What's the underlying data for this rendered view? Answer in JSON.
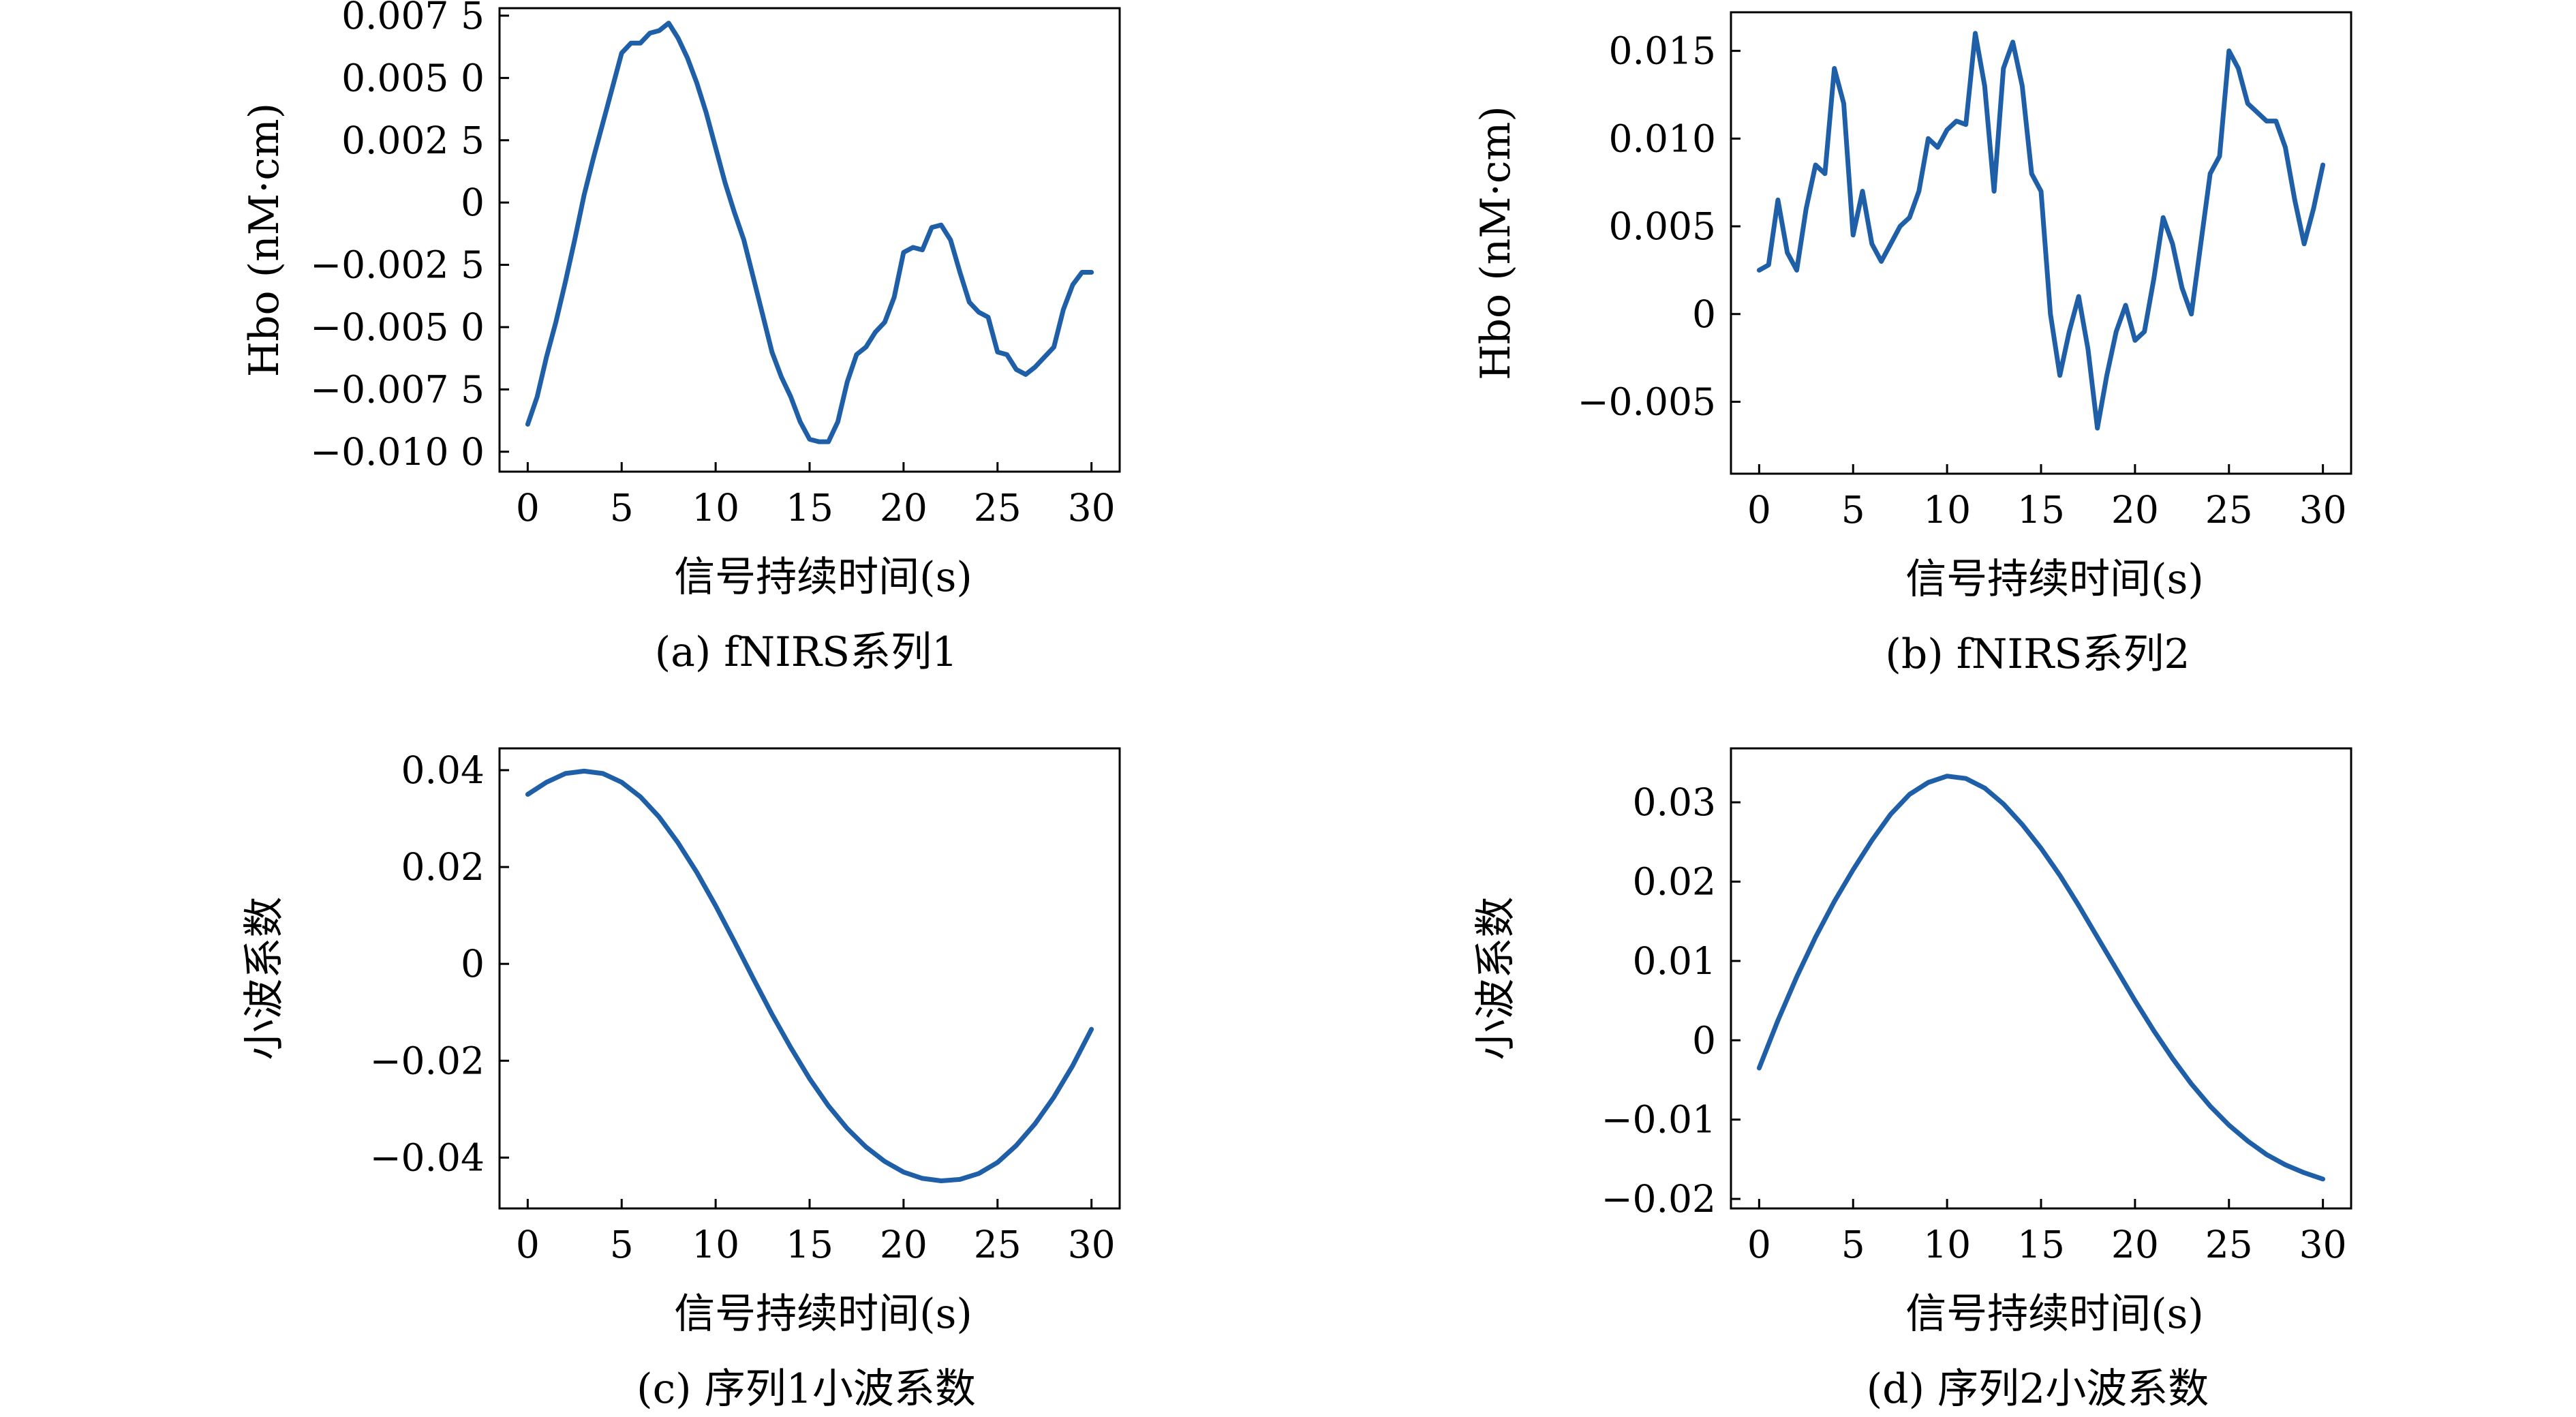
{
  "chart_data": [
    {
      "type": "line",
      "caption": "(a) fNIRS系列1",
      "xlabel": "信号持续时间(s)",
      "ylabel": "Hbo (nM·cm)",
      "xlim": [
        -1.5,
        31.5
      ],
      "ylim": [
        -0.0108,
        0.0078
      ],
      "xticks": [
        0,
        5,
        10,
        15,
        20,
        25,
        30
      ],
      "xtick_labels": [
        "0",
        "5",
        "10",
        "15",
        "20",
        "25",
        "30"
      ],
      "yticks": [
        -0.01,
        -0.0075,
        -0.005,
        -0.0025,
        0,
        0.0025,
        0.005,
        0.0075
      ],
      "ytick_labels": [
        "−0.010 0",
        "−0.007 5",
        "−0.005 0",
        "−0.002 5",
        "0",
        "0.002 5",
        "0.005 0",
        "0.007 5"
      ],
      "color": "#1f5fa8",
      "x": [
        0,
        0.5,
        1,
        1.5,
        2,
        2.5,
        3,
        3.5,
        4,
        4.5,
        5,
        5.5,
        6,
        6.5,
        7,
        7.5,
        8,
        8.5,
        9,
        9.5,
        10,
        10.5,
        11,
        11.5,
        12,
        12.5,
        13,
        13.5,
        14,
        14.5,
        15,
        15.5,
        16,
        16.5,
        17,
        17.5,
        18,
        18.5,
        19,
        19.5,
        20,
        20.5,
        21,
        21.5,
        22,
        22.5,
        23,
        23.5,
        24,
        24.5,
        25,
        25.5,
        26,
        26.5,
        27,
        27.5,
        28,
        28.5,
        29,
        29.5,
        30
      ],
      "y": [
        -0.0089,
        -0.0078,
        -0.0062,
        -0.0048,
        -0.0032,
        -0.0015,
        0.0003,
        0.0018,
        0.0032,
        0.0046,
        0.006,
        0.0064,
        0.0064,
        0.0068,
        0.0069,
        0.0072,
        0.0066,
        0.0058,
        0.0048,
        0.0036,
        0.0022,
        0.0008,
        -0.0004,
        -0.0015,
        -0.003,
        -0.0045,
        -0.006,
        -0.007,
        -0.0078,
        -0.0088,
        -0.0095,
        -0.0096,
        -0.0096,
        -0.0088,
        -0.0072,
        -0.0061,
        -0.0058,
        -0.0052,
        -0.0048,
        -0.0038,
        -0.002,
        -0.0018,
        -0.0019,
        -0.001,
        -0.0009,
        -0.0015,
        -0.0028,
        -0.004,
        -0.0044,
        -0.0046,
        -0.006,
        -0.0061,
        -0.0067,
        -0.0069,
        -0.0066,
        -0.0062,
        -0.0058,
        -0.0043,
        -0.0033,
        -0.0028,
        -0.0028
      ]
    },
    {
      "type": "line",
      "caption": "(b) fNIRS系列2",
      "xlabel": "信号持续时间(s)",
      "ylabel": "Hbo (nM·cm)",
      "xlim": [
        -1.5,
        31.5
      ],
      "ylim": [
        -0.0091,
        0.0172
      ],
      "xticks": [
        0,
        5,
        10,
        15,
        20,
        25,
        30
      ],
      "xtick_labels": [
        "0",
        "5",
        "10",
        "15",
        "20",
        "25",
        "30"
      ],
      "yticks": [
        -0.005,
        0,
        0.005,
        0.01,
        0.015
      ],
      "ytick_labels": [
        "−0.005",
        "0",
        "0.005",
        "0.010",
        "0.015"
      ],
      "color": "#1f5fa8",
      "x": [
        0,
        0.5,
        1,
        1.5,
        2,
        2.5,
        3,
        3.5,
        4,
        4.5,
        5,
        5.5,
        6,
        6.5,
        7,
        7.5,
        8,
        8.5,
        9,
        9.5,
        10,
        10.5,
        11,
        11.5,
        12,
        12.5,
        13,
        13.5,
        14,
        14.5,
        15,
        15.5,
        16,
        16.5,
        17,
        17.5,
        18,
        18.5,
        19,
        19.5,
        20,
        20.5,
        21,
        21.5,
        22,
        22.5,
        23,
        23.5,
        24,
        24.5,
        25,
        25.5,
        26,
        26.5,
        27,
        27.5,
        28,
        28.5,
        29,
        29.5,
        30
      ],
      "y": [
        0.0025,
        0.0028,
        0.0065,
        0.0035,
        0.0025,
        0.006,
        0.0085,
        0.008,
        0.014,
        0.012,
        0.0045,
        0.007,
        0.004,
        0.003,
        0.004,
        0.005,
        0.0055,
        0.007,
        0.01,
        0.0095,
        0.0105,
        0.011,
        0.0108,
        0.016,
        0.013,
        0.007,
        0.014,
        0.0155,
        0.013,
        0.008,
        0.007,
        0.0,
        -0.0035,
        -0.001,
        0.001,
        -0.002,
        -0.0065,
        -0.0035,
        -0.001,
        0.0005,
        -0.0015,
        -0.001,
        0.002,
        0.0055,
        0.004,
        0.0015,
        0.0,
        0.004,
        0.008,
        0.009,
        0.015,
        0.014,
        0.012,
        0.0115,
        0.011,
        0.011,
        0.0095,
        0.0065,
        0.004,
        0.006,
        0.0085
      ]
    },
    {
      "type": "line",
      "caption": "(c) 序列1小波系数",
      "xlabel": "信号持续时间(s)",
      "ylabel": "小波系数",
      "xlim": [
        -1.5,
        31.5
      ],
      "ylim": [
        -0.0505,
        0.0445
      ],
      "xticks": [
        0,
        5,
        10,
        15,
        20,
        25,
        30
      ],
      "xtick_labels": [
        "0",
        "5",
        "10",
        "15",
        "20",
        "25",
        "30"
      ],
      "yticks": [
        -0.04,
        -0.02,
        0,
        0.02,
        0.04
      ],
      "ytick_labels": [
        "−0.04",
        "−0.02",
        "0",
        "0.02",
        "0.04"
      ],
      "color": "#1f5fa8",
      "x": [
        0,
        1,
        2,
        3,
        4,
        5,
        6,
        7,
        8,
        9,
        10,
        11,
        12,
        13,
        14,
        15,
        16,
        17,
        18,
        19,
        20,
        21,
        22,
        23,
        24,
        25,
        26,
        27,
        28,
        29,
        30
      ],
      "y": [
        0.035,
        0.0375,
        0.0393,
        0.0398,
        0.0393,
        0.0375,
        0.0345,
        0.0303,
        0.025,
        0.0189,
        0.012,
        0.0046,
        -0.003,
        -0.0104,
        -0.0173,
        -0.0237,
        -0.0293,
        -0.034,
        -0.0378,
        -0.0408,
        -0.043,
        -0.0443,
        -0.0448,
        -0.0445,
        -0.0433,
        -0.041,
        -0.0375,
        -0.033,
        -0.0275,
        -0.021,
        -0.0135
      ]
    },
    {
      "type": "line",
      "caption": "(d) 序列2小波系数",
      "xlabel": "信号持续时间(s)",
      "ylabel": "小波系数",
      "xlim": [
        -1.5,
        31.5
      ],
      "ylim": [
        -0.0212,
        0.0368
      ],
      "xticks": [
        0,
        5,
        10,
        15,
        20,
        25,
        30
      ],
      "xtick_labels": [
        "0",
        "5",
        "10",
        "15",
        "20",
        "25",
        "30"
      ],
      "yticks": [
        -0.02,
        -0.01,
        0,
        0.01,
        0.02,
        0.03
      ],
      "ytick_labels": [
        "−0.02",
        "−0.01",
        "0",
        "0.01",
        "0.02",
        "0.03"
      ],
      "color": "#1f5fa8",
      "x": [
        0,
        1,
        2,
        3,
        4,
        5,
        6,
        7,
        8,
        9,
        10,
        11,
        12,
        13,
        14,
        15,
        16,
        17,
        18,
        19,
        20,
        21,
        22,
        23,
        24,
        25,
        26,
        27,
        28,
        29,
        30
      ],
      "y": [
        -0.0035,
        0.0025,
        0.008,
        0.013,
        0.0175,
        0.0215,
        0.0252,
        0.0285,
        0.031,
        0.0325,
        0.0333,
        0.033,
        0.0318,
        0.0298,
        0.0272,
        0.0242,
        0.0208,
        0.017,
        0.013,
        0.009,
        0.005,
        0.0012,
        -0.0023,
        -0.0055,
        -0.0083,
        -0.0107,
        -0.0127,
        -0.0144,
        -0.0157,
        -0.0167,
        -0.0175
      ]
    }
  ]
}
